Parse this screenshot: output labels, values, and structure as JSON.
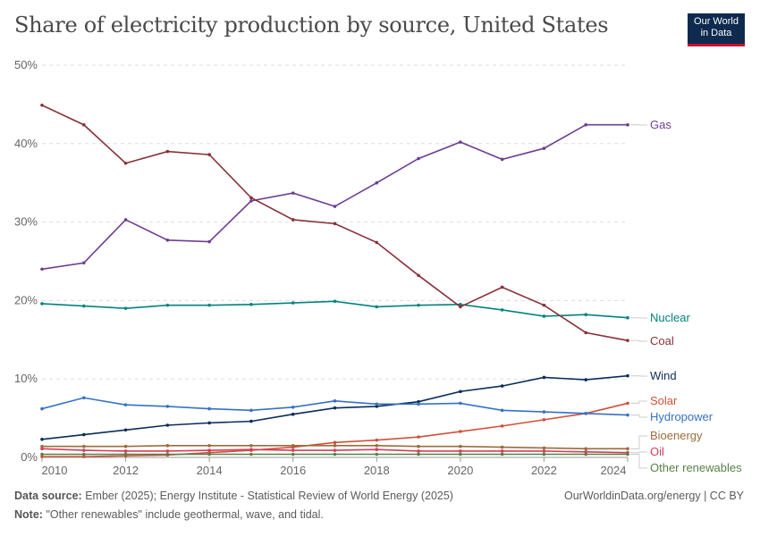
{
  "header": {
    "title": "Share of electricity production by source, United States",
    "logo": "Our World in Data"
  },
  "footer": {
    "source_label": "Data source:",
    "source_text": "Ember (2025); Energy Institute - Statistical Review of World Energy (2025)",
    "note_label": "Note:",
    "note_text": "\"Other renewables\" include geothermal, wave, and tidal.",
    "credit": "OurWorldinData.org/energy | CC BY"
  },
  "chart_data": {
    "type": "line",
    "title": "Share of electricity production by source, United States",
    "x": [
      2010,
      2011,
      2012,
      2013,
      2014,
      2015,
      2016,
      2017,
      2018,
      2019,
      2020,
      2021,
      2022,
      2023,
      2024
    ],
    "xticks": [
      "2010",
      "2012",
      "2014",
      "2016",
      "2018",
      "2020",
      "2022",
      "2024"
    ],
    "yticks": [
      "0%",
      "10%",
      "20%",
      "30%",
      "40%",
      "50%"
    ],
    "ylim": [
      0,
      50
    ],
    "grid": "horizontal dashed",
    "legend": "right, inline labels",
    "series": [
      {
        "name": "Gas",
        "color": "#6d3e91",
        "values": [
          24.0,
          24.8,
          30.3,
          27.7,
          27.5,
          32.7,
          33.7,
          32.0,
          35.0,
          38.1,
          40.2,
          38.0,
          39.4,
          42.4,
          42.4
        ]
      },
      {
        "name": "Nuclear",
        "color": "#00847e",
        "values": [
          19.6,
          19.3,
          19.0,
          19.4,
          19.4,
          19.5,
          19.7,
          19.9,
          19.2,
          19.4,
          19.5,
          18.8,
          18.0,
          18.2,
          17.8
        ]
      },
      {
        "name": "Coal",
        "color": "#883039",
        "values": [
          44.9,
          42.4,
          37.5,
          39.0,
          38.6,
          33.1,
          30.3,
          29.8,
          27.4,
          23.2,
          19.2,
          21.7,
          19.4,
          15.9,
          14.9
        ]
      },
      {
        "name": "Wind",
        "color": "#0b2c5a",
        "values": [
          2.3,
          2.9,
          3.5,
          4.1,
          4.4,
          4.6,
          5.5,
          6.3,
          6.5,
          7.1,
          8.4,
          9.1,
          10.2,
          9.9,
          10.4
        ]
      },
      {
        "name": "Solar",
        "color": "#d0503a",
        "values": [
          0.1,
          0.1,
          0.2,
          0.3,
          0.6,
          0.9,
          1.3,
          1.9,
          2.2,
          2.6,
          3.3,
          4.0,
          4.8,
          5.6,
          6.9
        ]
      },
      {
        "name": "Hydropower",
        "color": "#3571c8",
        "values": [
          6.2,
          7.6,
          6.7,
          6.5,
          6.2,
          6.0,
          6.4,
          7.2,
          6.8,
          6.8,
          6.9,
          6.0,
          5.8,
          5.6,
          5.4
        ]
      },
      {
        "name": "Bioenergy",
        "color": "#996d3c",
        "values": [
          1.4,
          1.4,
          1.4,
          1.5,
          1.5,
          1.5,
          1.5,
          1.5,
          1.5,
          1.4,
          1.4,
          1.3,
          1.2,
          1.1,
          1.1
        ]
      },
      {
        "name": "Oil",
        "color": "#d73c5a",
        "values": [
          1.1,
          0.9,
          0.8,
          0.8,
          0.9,
          1.0,
          0.9,
          0.9,
          1.0,
          0.8,
          0.8,
          0.8,
          0.8,
          0.7,
          0.6
        ]
      },
      {
        "name": "Other renewables",
        "color": "#578145",
        "values": [
          0.4,
          0.4,
          0.4,
          0.4,
          0.4,
          0.4,
          0.4,
          0.4,
          0.4,
          0.4,
          0.4,
          0.4,
          0.4,
          0.4,
          0.4
        ]
      }
    ]
  }
}
